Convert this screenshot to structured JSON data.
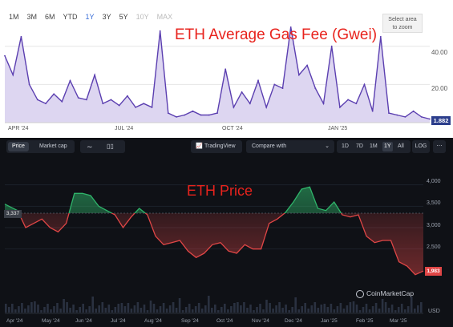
{
  "gas_panel": {
    "range_buttons": [
      {
        "label": "1M",
        "state": "normal"
      },
      {
        "label": "3M",
        "state": "normal"
      },
      {
        "label": "6M",
        "state": "normal"
      },
      {
        "label": "YTD",
        "state": "normal"
      },
      {
        "label": "1Y",
        "state": "active"
      },
      {
        "label": "3Y",
        "state": "normal"
      },
      {
        "label": "5Y",
        "state": "normal"
      },
      {
        "label": "10Y",
        "state": "disabled"
      },
      {
        "label": "MAX",
        "state": "disabled"
      }
    ],
    "select_area_line1": "Select area",
    "select_area_line2": "to zoom",
    "current_value": "1.882"
  },
  "price_panel": {
    "tabs": {
      "price": "Price",
      "market_cap": "Market cap"
    },
    "tradingview_label": "TradingView",
    "compare_label": "Compare with",
    "ranges": [
      "1D",
      "7D",
      "1M",
      "1Y",
      "All"
    ],
    "active_range": "1Y",
    "log_label": "LOG",
    "start_value": "3,337",
    "current_value": "1,983",
    "watermark": "CoinMarketCap"
  },
  "colors": {
    "gas_line": "#5b3fb0",
    "gas_fill": "#ddd6f1",
    "accent_blue": "#3b6fd8",
    "title_red": "#e8231d",
    "price_up": "#2fb46a",
    "price_down": "#e04646",
    "dark_bg": "#0f1116"
  },
  "chart_data": [
    {
      "type": "area",
      "title": "ETH Average Gas Fee (Gwei)",
      "x_ticks": [
        "APR '24",
        "JUL '24",
        "OCT '24",
        "JAN '25"
      ],
      "y_ticks": [
        "20.00",
        "40.00"
      ],
      "x": [
        "2024-03-25",
        "2024-04-01",
        "2024-04-08",
        "2024-04-15",
        "2024-04-22",
        "2024-04-29",
        "2024-05-06",
        "2024-05-13",
        "2024-05-20",
        "2024-05-27",
        "2024-06-03",
        "2024-06-10",
        "2024-06-17",
        "2024-06-24",
        "2024-07-01",
        "2024-07-08",
        "2024-07-15",
        "2024-07-22",
        "2024-07-29",
        "2024-08-05",
        "2024-08-12",
        "2024-08-19",
        "2024-08-26",
        "2024-09-02",
        "2024-09-09",
        "2024-09-16",
        "2024-09-23",
        "2024-09-30",
        "2024-10-07",
        "2024-10-14",
        "2024-10-21",
        "2024-10-28",
        "2024-11-04",
        "2024-11-11",
        "2024-11-18",
        "2024-11-25",
        "2024-12-02",
        "2024-12-09",
        "2024-12-16",
        "2024-12-23",
        "2024-12-30",
        "2025-01-06",
        "2025-01-13",
        "2025-01-20",
        "2025-01-27",
        "2025-02-03",
        "2025-02-10",
        "2025-02-17",
        "2025-02-24",
        "2025-03-03",
        "2025-03-10",
        "2025-03-17",
        "2025-03-24"
      ],
      "values": [
        35,
        25,
        45,
        20,
        12,
        10,
        15,
        11,
        22,
        13,
        12,
        25,
        10,
        12,
        9,
        14,
        8,
        10,
        8,
        48,
        5,
        3,
        4,
        6,
        4,
        4,
        5,
        28,
        8,
        16,
        10,
        22,
        8,
        20,
        18,
        50,
        25,
        30,
        18,
        10,
        40,
        8,
        12,
        10,
        20,
        6,
        45,
        5,
        4,
        3,
        6,
        3,
        1.882
      ],
      "ylim": [
        0,
        55
      ]
    },
    {
      "type": "line",
      "title": "ETH Price",
      "x_ticks": [
        "Apr '24",
        "May '24",
        "Jun '24",
        "Jul '24",
        "Aug '24",
        "Sep '24",
        "Oct '24",
        "Nov '24",
        "Dec '24",
        "Jan '25",
        "Feb '25",
        "Mar '25"
      ],
      "y_ticks": [
        "2,500",
        "3,000",
        "3,500",
        "4,000"
      ],
      "y_unit": "USD",
      "baseline": 3337,
      "x": [
        "2024-03-26",
        "2024-04-06",
        "2024-04-13",
        "2024-04-20",
        "2024-04-27",
        "2024-05-04",
        "2024-05-11",
        "2024-05-18",
        "2024-05-25",
        "2024-06-01",
        "2024-06-08",
        "2024-06-15",
        "2024-06-22",
        "2024-06-29",
        "2024-07-06",
        "2024-07-13",
        "2024-07-20",
        "2024-07-27",
        "2024-08-03",
        "2024-08-10",
        "2024-08-17",
        "2024-08-24",
        "2024-08-31",
        "2024-09-07",
        "2024-09-14",
        "2024-09-21",
        "2024-09-28",
        "2024-10-05",
        "2024-10-12",
        "2024-10-19",
        "2024-10-26",
        "2024-11-02",
        "2024-11-09",
        "2024-11-16",
        "2024-11-23",
        "2024-11-30",
        "2024-12-07",
        "2024-12-14",
        "2024-12-21",
        "2024-12-28",
        "2025-01-04",
        "2025-01-11",
        "2025-01-18",
        "2025-01-25",
        "2025-02-01",
        "2025-02-08",
        "2025-02-15",
        "2025-02-22",
        "2025-03-01",
        "2025-03-08",
        "2025-03-15",
        "2025-03-22"
      ],
      "values": [
        3550,
        3400,
        3000,
        3100,
        3200,
        3000,
        2900,
        3100,
        3800,
        3800,
        3750,
        3500,
        3400,
        3300,
        3000,
        3250,
        3450,
        3300,
        2800,
        2600,
        2650,
        2700,
        2450,
        2300,
        2400,
        2600,
        2650,
        2450,
        2400,
        2600,
        2500,
        2500,
        3100,
        3200,
        3350,
        3600,
        3900,
        3950,
        3450,
        3400,
        3600,
        3300,
        3250,
        3300,
        2800,
        2650,
        2700,
        2700,
        2200,
        2100,
        1900,
        1983
      ],
      "ylim": [
        1800,
        4200
      ]
    }
  ]
}
